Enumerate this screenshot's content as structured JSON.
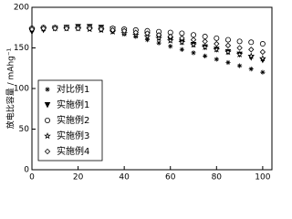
{
  "chart_data": {
    "type": "scatter",
    "y_label": "放电比容量 / mAhg⁻¹",
    "x": [
      0,
      5,
      10,
      15,
      20,
      25,
      30,
      35,
      40,
      45,
      50,
      55,
      60,
      65,
      70,
      75,
      80,
      85,
      90,
      95,
      100
    ],
    "series": [
      {
        "name": "对比例1",
        "color": "#000000",
        "marker": "asterisk",
        "values": [
          172,
          173,
          174,
          175,
          175,
          174,
          172,
          170,
          167,
          164,
          160,
          156,
          152,
          148,
          144,
          140,
          136,
          132,
          128,
          124,
          120
        ]
      },
      {
        "name": "实施例1",
        "color": "#000000",
        "marker": "triangle-down",
        "values": [
          170,
          172,
          174,
          175,
          176,
          176,
          175,
          173,
          171,
          169,
          166,
          163,
          160,
          157,
          154,
          151,
          148,
          145,
          142,
          138,
          135
        ]
      },
      {
        "name": "实施例2",
        "color": "#000000",
        "marker": "circle",
        "values": [
          174,
          175,
          175,
          175,
          175,
          175,
          174,
          174,
          173,
          172,
          171,
          170,
          169,
          168,
          166,
          164,
          162,
          160,
          158,
          157,
          155
        ]
      },
      {
        "name": "实施例3",
        "color": "#000000",
        "marker": "star",
        "values": [
          173,
          174,
          174,
          174,
          174,
          173,
          172,
          170,
          168,
          166,
          164,
          162,
          159,
          157,
          154,
          151,
          148,
          145,
          142,
          140,
          137
        ]
      },
      {
        "name": "实施例4",
        "color": "#000000",
        "marker": "diamond",
        "values": [
          173,
          174,
          174,
          174,
          174,
          174,
          173,
          172,
          171,
          169,
          168,
          166,
          164,
          162,
          160,
          158,
          155,
          153,
          150,
          148,
          145
        ]
      }
    ],
    "xlim": [
      0,
      104
    ],
    "xticks": [
      0,
      20,
      40,
      60,
      80,
      100
    ],
    "ylim": [
      0,
      200
    ],
    "yticks": [
      0,
      50,
      100,
      150,
      200
    ]
  }
}
